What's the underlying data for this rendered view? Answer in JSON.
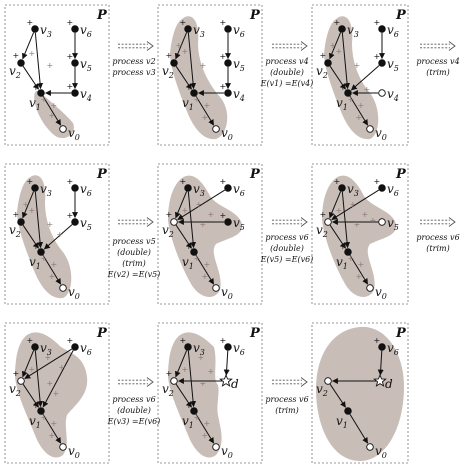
{
  "figure": {
    "panel_label": "P",
    "node_labels": {
      "v0": "v0",
      "v1": "v1",
      "v2": "v2",
      "v3": "v3",
      "v4": "v4",
      "v5": "v5",
      "v6": "v6",
      "d": "d"
    },
    "plus_sign": "+",
    "colors": {
      "region": "#c9bdb8",
      "edge": "#111111",
      "plus_black": "#111111",
      "plus_grey": "#8a7a76",
      "arrow": "#555555"
    },
    "steps": [
      {
        "lines": [
          "process v2",
          "process v3"
        ]
      },
      {
        "lines": [
          "process v4",
          "(double)",
          "E(v1) =E(v4)"
        ]
      },
      {
        "lines": [
          "process v4",
          "(trim)"
        ]
      },
      {
        "lines": [
          "process v5",
          "(double)",
          "(trim)",
          "E(v2) =E(v5)"
        ]
      },
      {
        "lines": [
          "process v6",
          "(double)",
          "E(v5) =E(v6)"
        ]
      },
      {
        "lines": [
          "process v6",
          "(trim)"
        ]
      },
      {
        "lines": [
          "process v6",
          "(double)",
          "E(v3) =E(v6)"
        ]
      },
      {
        "lines": [
          "process v6",
          "(trim)"
        ]
      }
    ]
  }
}
